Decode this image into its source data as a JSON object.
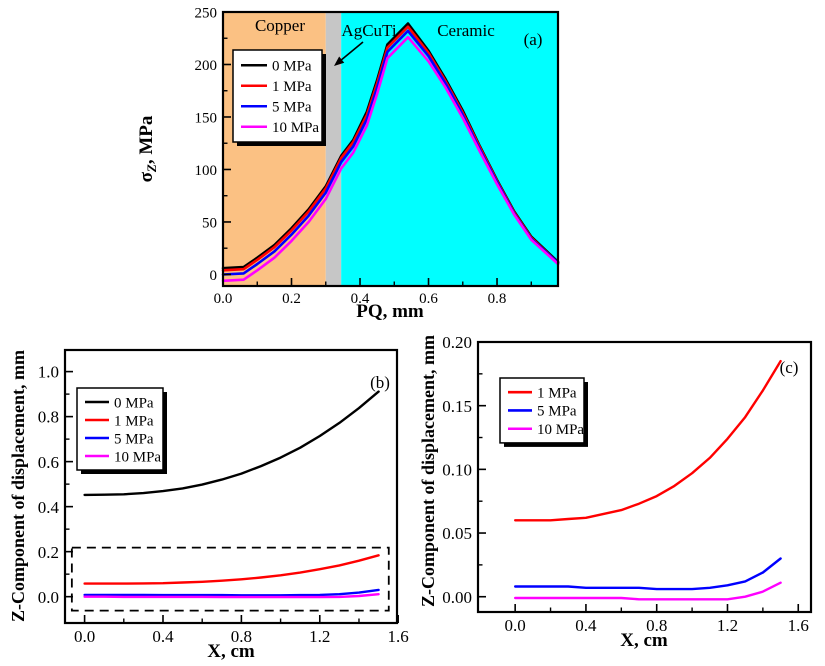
{
  "figure": {
    "background": "#ffffff",
    "panel_labels": [
      "(a)",
      "(b)",
      "(c)"
    ]
  },
  "colors": {
    "series_black": "#000000",
    "series_red": "#ff0000",
    "series_blue": "#0000ff",
    "series_magenta": "#ff00ff",
    "copper_fill": "#fbc183",
    "agcuti_fill": "#c6c6c6",
    "ceramic_fill": "#00ffff",
    "axis": "#000000"
  },
  "chart_data": [
    {
      "type": "line",
      "panel_label": "(a)",
      "xlabel": "PQ, mm",
      "ylabel": {
        "pre": "σ",
        "sub": "Z",
        "post": ", MPa"
      },
      "xlim": [
        0,
        0.978
      ],
      "ylim": [
        -11,
        250
      ],
      "grid": false,
      "legend_position": "upper-left",
      "xticks": {
        "major": [
          [
            "0.0",
            0
          ],
          [
            "0.2",
            0.2
          ],
          [
            "0.4",
            0.4
          ],
          [
            "0.6",
            0.6
          ],
          [
            "0.8",
            0.8
          ]
        ],
        "minor": [
          0.1,
          0.3,
          0.5,
          0.7,
          0.9
        ]
      },
      "yticks": {
        "major": [
          [
            "0",
            0
          ],
          [
            "50",
            50
          ],
          [
            "100",
            100
          ],
          [
            "150",
            150
          ],
          [
            "200",
            200
          ],
          [
            "250",
            250
          ]
        ],
        "minor": [
          25,
          75,
          125,
          175,
          225
        ]
      },
      "regions": [
        {
          "label": "Copper",
          "from": 0,
          "to": 0.3,
          "fill": "#fbc183"
        },
        {
          "label": "AgCuTi",
          "from": 0.3,
          "to": 0.345,
          "fill": "#c6c6c6"
        },
        {
          "label": "Ceramic",
          "from": 0.345,
          "to": 0.978,
          "fill": "#00ffff"
        }
      ],
      "x": [
        0,
        0.06,
        0.1,
        0.15,
        0.2,
        0.25,
        0.3,
        0.345,
        0.38,
        0.42,
        0.45,
        0.48,
        0.54,
        0.6,
        0.65,
        0.7,
        0.75,
        0.8,
        0.85,
        0.9,
        0.978
      ],
      "series": [
        {
          "name": "0 MPa",
          "color": "#000000",
          "values": [
            6,
            7,
            16,
            28,
            44,
            62,
            84,
            113,
            128,
            155,
            185,
            219,
            239,
            213,
            186,
            156,
            122,
            90,
            60,
            36,
            12
          ]
        },
        {
          "name": "1 MPa",
          "color": "#ff0000",
          "values": [
            4,
            5,
            14,
            26,
            42,
            60,
            82,
            111,
            126,
            152,
            182,
            216,
            236,
            211,
            184,
            154,
            121,
            89,
            59,
            35,
            11
          ]
        },
        {
          "name": "5 MPa",
          "color": "#0000ff",
          "values": [
            0,
            1,
            10,
            22,
            38,
            56,
            78,
            107,
            122,
            148,
            178,
            212,
            232,
            208,
            182,
            152,
            119,
            88,
            58,
            34,
            11
          ]
        },
        {
          "name": "10 MPa",
          "color": "#ff00ff",
          "values": [
            -6,
            -5,
            4,
            16,
            32,
            50,
            72,
            101,
            116,
            142,
            172,
            206,
            226,
            203,
            178,
            149,
            117,
            86,
            57,
            33,
            10
          ]
        }
      ]
    },
    {
      "type": "line",
      "panel_label": "(b)",
      "xlabel": "X, cm",
      "ylabel": {
        "pre": "Z-Component of displacement, mm"
      },
      "xlim": [
        -0.1,
        1.594
      ],
      "ylim": [
        -0.117,
        1.096
      ],
      "grid": false,
      "legend_position": "upper-left",
      "xticks": {
        "major": [
          [
            "0.0",
            0
          ],
          [
            "0.4",
            0.4
          ],
          [
            "0.8",
            0.8
          ],
          [
            "1.2",
            1.2
          ],
          [
            "1.6",
            1.6
          ]
        ],
        "minor": [
          0.2,
          0.6,
          1.0,
          1.4
        ]
      },
      "yticks": {
        "major": [
          [
            "0.0",
            0
          ],
          [
            "0.2",
            0.2
          ],
          [
            "0.4",
            0.4
          ],
          [
            "0.6",
            0.6
          ],
          [
            "0.8",
            0.8
          ],
          [
            "1.0",
            1.0
          ]
        ],
        "minor": [
          0.1,
          0.3,
          0.5,
          0.7,
          0.9
        ]
      },
      "highlight_box": {
        "x0": -0.065,
        "x1": 1.552,
        "y0": -0.062,
        "y1": 0.218,
        "style": "dashed"
      },
      "x": [
        0,
        0.1,
        0.2,
        0.3,
        0.4,
        0.5,
        0.6,
        0.7,
        0.8,
        0.9,
        1.0,
        1.1,
        1.2,
        1.3,
        1.4,
        1.5
      ],
      "series": [
        {
          "name": "0 MPa",
          "color": "#000000",
          "values": [
            0.452,
            0.453,
            0.455,
            0.46,
            0.469,
            0.481,
            0.498,
            0.52,
            0.547,
            0.58,
            0.618,
            0.662,
            0.714,
            0.772,
            0.838,
            0.911
          ]
        },
        {
          "name": "1 MPa",
          "color": "#ff0000",
          "values": [
            0.058,
            0.058,
            0.058,
            0.059,
            0.06,
            0.063,
            0.066,
            0.071,
            0.077,
            0.085,
            0.095,
            0.107,
            0.122,
            0.139,
            0.16,
            0.184
          ]
        },
        {
          "name": "5 MPa",
          "color": "#0000ff",
          "values": [
            0.008,
            0.008,
            0.008,
            0.008,
            0.007,
            0.007,
            0.007,
            0.007,
            0.006,
            0.006,
            0.006,
            0.007,
            0.008,
            0.011,
            0.018,
            0.03
          ]
        },
        {
          "name": "10 MPa",
          "color": "#ff00ff",
          "values": [
            0.0,
            0.0,
            -0.001,
            -0.001,
            -0.001,
            -0.001,
            -0.001,
            -0.002,
            -0.002,
            -0.002,
            -0.002,
            -0.002,
            -0.002,
            -0.001,
            0.003,
            0.011
          ]
        }
      ]
    },
    {
      "type": "line",
      "panel_label": "(c)",
      "xlabel": "X, cm",
      "ylabel": {
        "pre": "Z-Component of displacement, mm"
      },
      "xlim": [
        -0.21,
        1.672
      ],
      "ylim": [
        -0.012,
        0.2
      ],
      "grid": false,
      "legend_position": "upper-left",
      "xticks": {
        "major": [
          [
            "0.0",
            0
          ],
          [
            "0.4",
            0.4
          ],
          [
            "0.8",
            0.8
          ],
          [
            "1.2",
            1.2
          ],
          [
            "1.6",
            1.6
          ]
        ],
        "minor": [
          0.2,
          0.6,
          1.0,
          1.4
        ]
      },
      "yticks": {
        "major": [
          [
            "0.00",
            0
          ],
          [
            "0.05",
            0.05
          ],
          [
            "0.10",
            0.1
          ],
          [
            "0.15",
            0.15
          ],
          [
            "0.20",
            0.2
          ]
        ],
        "minor": [
          0.025,
          0.075,
          0.125,
          0.175
        ]
      },
      "x": [
        0,
        0.1,
        0.2,
        0.3,
        0.4,
        0.5,
        0.6,
        0.7,
        0.8,
        0.9,
        1.0,
        1.1,
        1.2,
        1.3,
        1.4,
        1.5
      ],
      "series": [
        {
          "name": "1 MPa",
          "color": "#ff0000",
          "values": [
            0.06,
            0.06,
            0.06,
            0.061,
            0.062,
            0.065,
            0.068,
            0.073,
            0.079,
            0.087,
            0.097,
            0.109,
            0.124,
            0.141,
            0.162,
            0.185
          ]
        },
        {
          "name": "5 MPa",
          "color": "#0000ff",
          "values": [
            0.008,
            0.008,
            0.008,
            0.008,
            0.007,
            0.007,
            0.007,
            0.007,
            0.006,
            0.006,
            0.006,
            0.007,
            0.009,
            0.012,
            0.019,
            0.03
          ]
        },
        {
          "name": "10 MPa",
          "color": "#ff00ff",
          "values": [
            -0.001,
            -0.001,
            -0.001,
            -0.001,
            -0.001,
            -0.001,
            -0.001,
            -0.002,
            -0.002,
            -0.002,
            -0.002,
            -0.002,
            -0.002,
            0.0,
            0.004,
            0.011
          ]
        }
      ]
    }
  ]
}
